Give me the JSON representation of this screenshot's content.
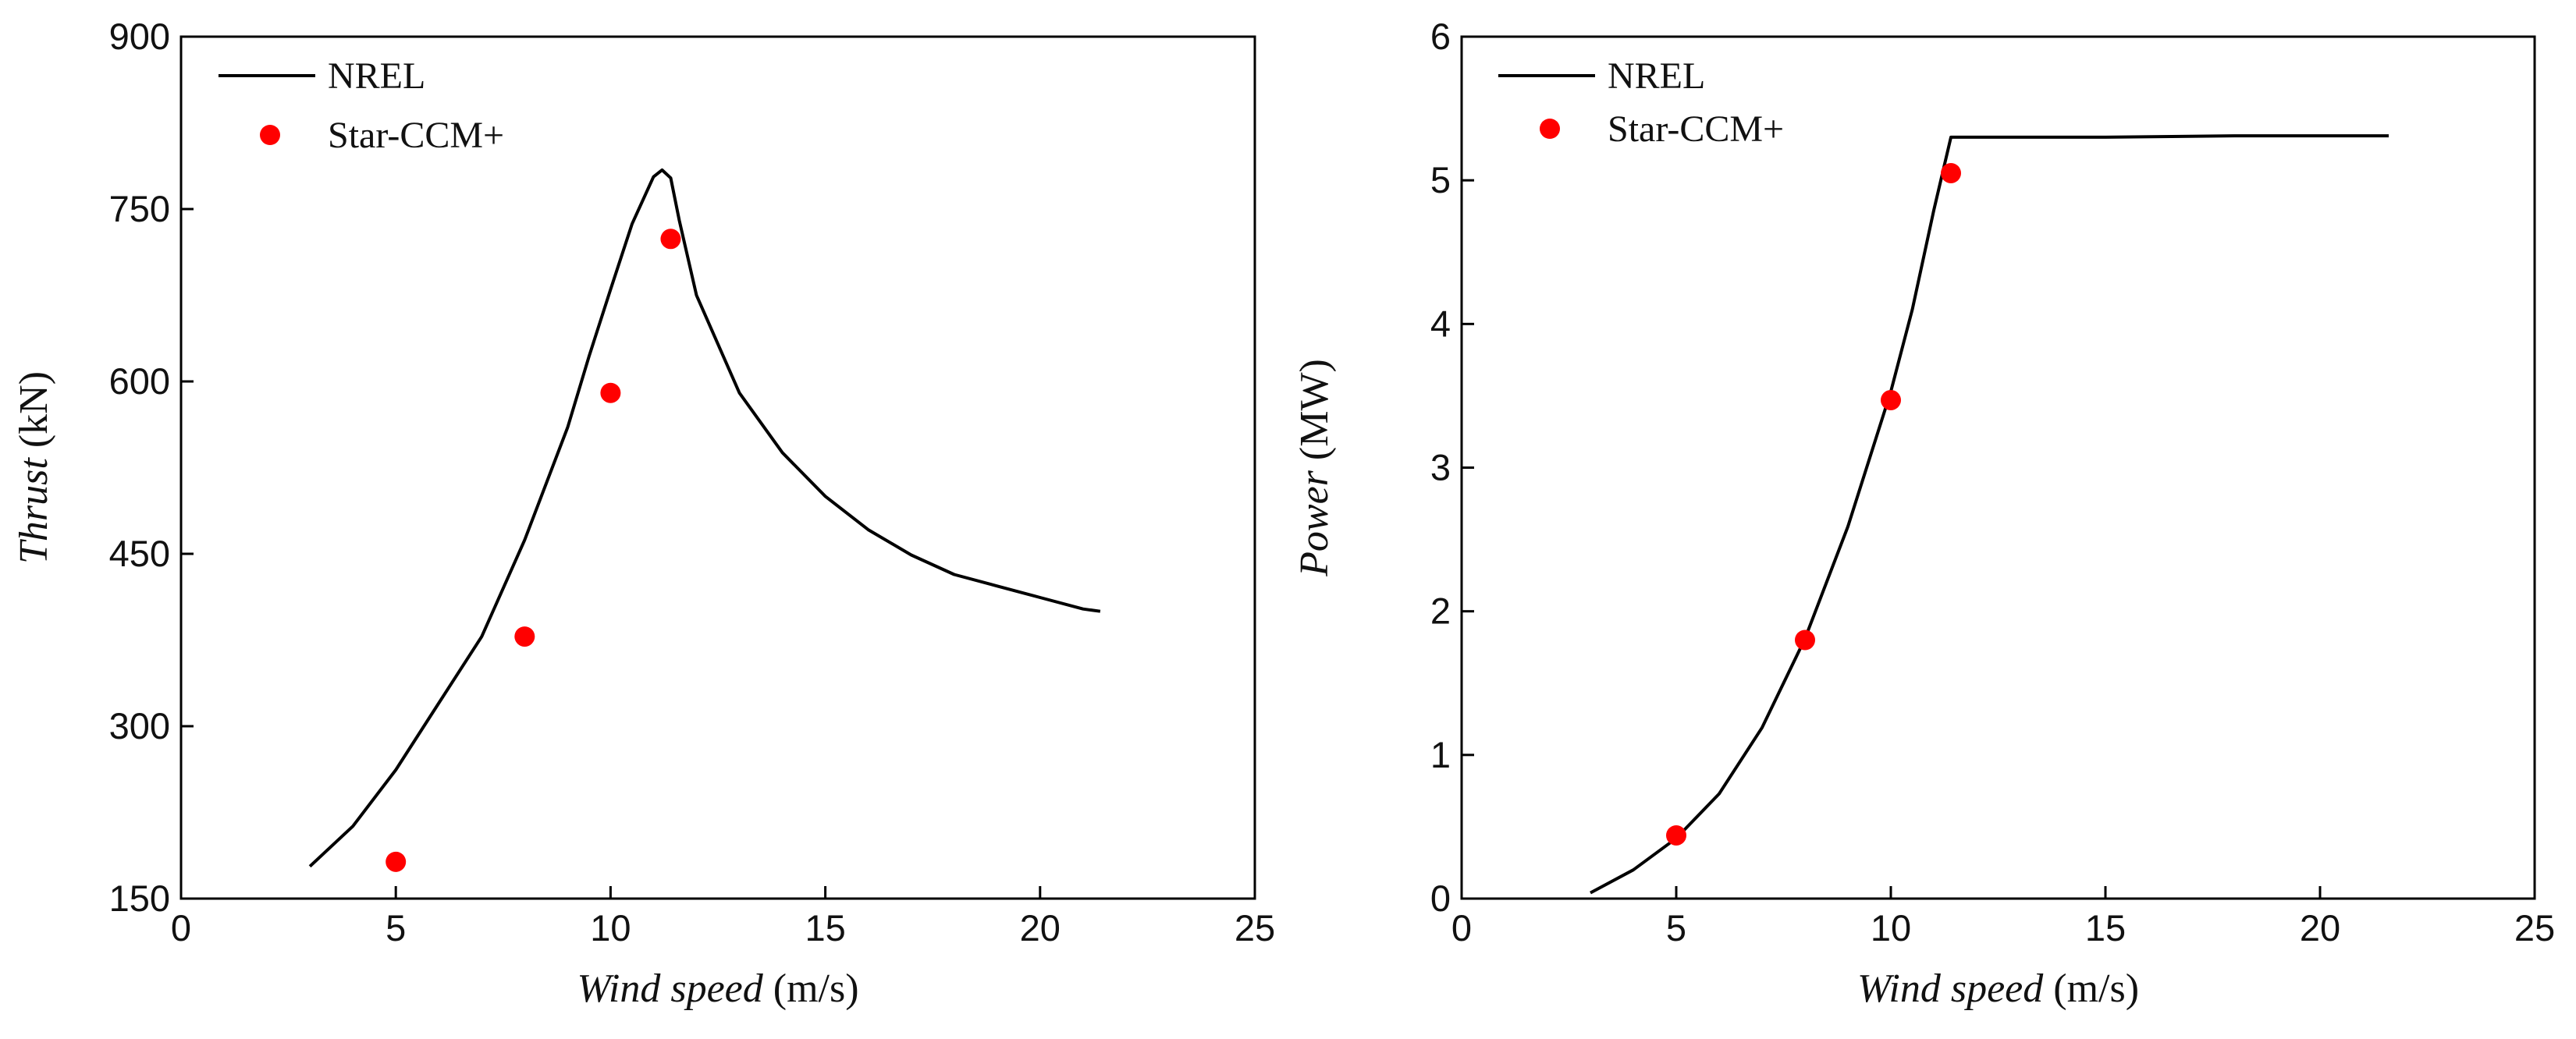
{
  "chart_data": [
    {
      "type": "line",
      "xlabel": {
        "italic": "Wind speed",
        "unit": " (m/s)"
      },
      "ylabel": {
        "italic": "Thrust",
        "unit": " (kN)"
      },
      "xlim": [
        0,
        25
      ],
      "ylim": [
        150,
        900
      ],
      "xticks": [
        "0",
        "5",
        "10",
        "15",
        "20",
        "25"
      ],
      "yticks": [
        "150",
        "300",
        "450",
        "600",
        "750",
        "900"
      ],
      "grid": false,
      "legend_position": "top-left",
      "series": [
        {
          "name": "NREL",
          "style": "line",
          "color": "#000000",
          "x": [
            3,
            4,
            5,
            6,
            7,
            8,
            9,
            9.5,
            10,
            10.5,
            11,
            11.2,
            11.4,
            11.6,
            12,
            13,
            14,
            15,
            16,
            17,
            18,
            19,
            20,
            21,
            21.4
          ],
          "y": [
            178,
            213,
            262,
            320,
            378,
            462,
            560,
            622,
            680,
            737,
            778,
            784,
            777,
            740,
            675,
            590,
            538,
            500,
            471,
            449,
            432,
            422,
            412,
            402,
            400
          ]
        },
        {
          "name": "Star-CCM+",
          "style": "marker",
          "color": "#ff0000",
          "x": [
            5,
            8,
            10,
            11.4
          ],
          "y": [
            182,
            378,
            590,
            724
          ]
        }
      ]
    },
    {
      "type": "line",
      "xlabel": {
        "italic": "Wind speed",
        "unit": " (m/s)"
      },
      "ylabel": {
        "italic": "Power",
        "unit": " (MW)"
      },
      "xlim": [
        0,
        25
      ],
      "ylim": [
        0,
        6
      ],
      "xticks": [
        "0",
        "5",
        "10",
        "15",
        "20",
        "25"
      ],
      "yticks": [
        "0",
        "1",
        "2",
        "3",
        "4",
        "5",
        "6"
      ],
      "grid": false,
      "legend_position": "top-left",
      "series": [
        {
          "name": "NREL",
          "style": "line",
          "color": "#000000",
          "x": [
            3,
            4,
            5,
            6,
            7,
            8,
            9,
            10,
            10.5,
            11,
            11.4,
            12,
            15,
            18,
            20,
            21.6
          ],
          "y": [
            0.04,
            0.2,
            0.42,
            0.73,
            1.19,
            1.81,
            2.59,
            3.53,
            4.1,
            4.79,
            5.3,
            5.3,
            5.3,
            5.31,
            5.31,
            5.31
          ]
        },
        {
          "name": "Star-CCM+",
          "style": "marker",
          "color": "#ff0000",
          "x": [
            5,
            8,
            10,
            11.4
          ],
          "y": [
            0.44,
            1.8,
            3.47,
            5.05
          ]
        }
      ]
    }
  ]
}
